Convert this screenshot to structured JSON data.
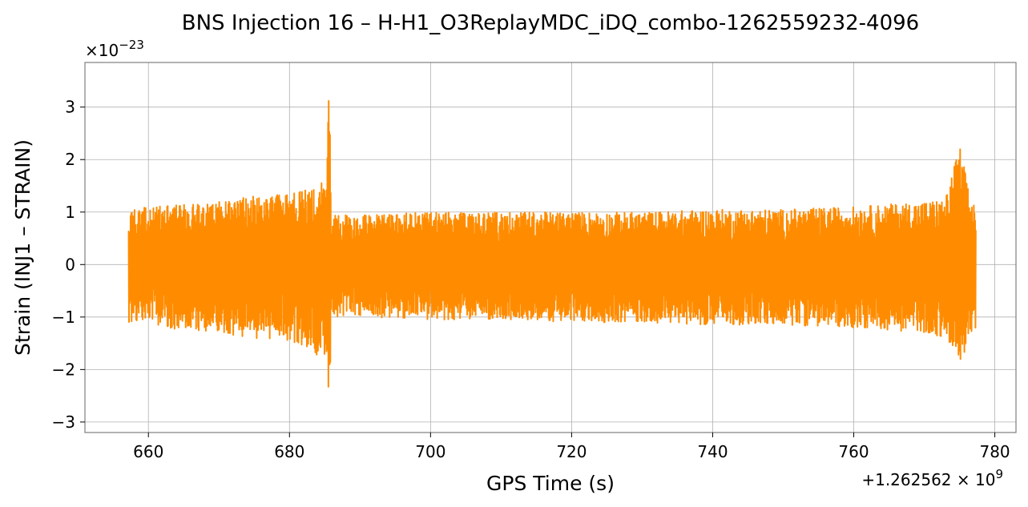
{
  "chart_data": {
    "type": "line",
    "title": "BNS Injection 16 – H-H1_O3ReplayMDC_iDQ_combo-1262559232-4096",
    "xlabel": "GPS Time (s)",
    "ylabel": "Strain (INJ1 – STRAIN)",
    "x_offset_label": "+1.262562 × 10",
    "x_offset_exp": "9",
    "y_scale_label": "×10",
    "y_scale_exp": "−23",
    "xlim": [
      651,
      783
    ],
    "ylim": [
      -3.2,
      3.85
    ],
    "xticks": [
      660,
      680,
      700,
      720,
      740,
      760,
      780
    ],
    "xtick_labels": [
      "660",
      "680",
      "700",
      "720",
      "740",
      "760",
      "780"
    ],
    "yticks": [
      -3,
      -2,
      -1,
      0,
      1,
      2,
      3
    ],
    "ytick_labels": [
      "−3",
      "−2",
      "−1",
      "0",
      "1",
      "2",
      "3"
    ],
    "grid": true,
    "series": [
      {
        "color": "#ff8c00",
        "envelope": {
          "x": [
            657.2,
            660,
            665,
            670,
            675,
            680,
            683,
            685,
            685.6,
            686.0,
            690,
            700,
            710,
            720,
            730,
            740,
            750,
            760,
            765,
            770,
            773,
            775,
            776.5,
            777.3
          ],
          "upper": [
            1.05,
            1.1,
            1.15,
            1.2,
            1.3,
            1.35,
            1.45,
            1.6,
            3.55,
            0.95,
            0.95,
            1.0,
            1.0,
            1.0,
            1.0,
            1.05,
            1.05,
            1.1,
            1.15,
            1.2,
            1.25,
            2.3,
            1.3,
            1.2
          ],
          "lower": [
            -1.1,
            -1.15,
            -1.25,
            -1.3,
            -1.4,
            -1.45,
            -1.6,
            -1.9,
            -2.88,
            -1.0,
            -1.0,
            -1.05,
            -1.05,
            -1.1,
            -1.1,
            -1.15,
            -1.15,
            -1.2,
            -1.25,
            -1.3,
            -1.4,
            -1.95,
            -1.35,
            -1.2
          ]
        }
      }
    ]
  }
}
